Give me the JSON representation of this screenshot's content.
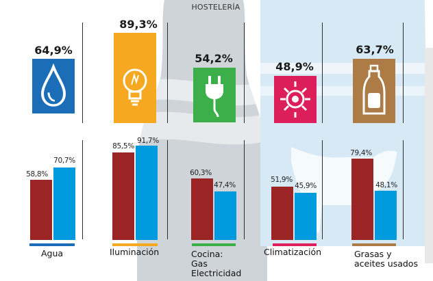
{
  "header": {
    "title": "HOSTELERÍA"
  },
  "colors": {
    "bar_a": "#9b2424",
    "bar_b": "#009bdf",
    "agua": "#1c6db8",
    "iluminacion": "#f6a821",
    "cocina": "#3cae4a",
    "climatizacion": "#dc1e5b",
    "grasas": "#ad7b45"
  },
  "chart_data": {
    "type": "bar",
    "title": "HOSTELERÍA",
    "categories": [
      {
        "key": "agua",
        "label": "Agua",
        "total": "64,9%",
        "a": "58,8%",
        "b": "70,7%",
        "icon": "water-drop-icon"
      },
      {
        "key": "iluminacion",
        "label": "Iluminación",
        "total": "89,3%",
        "a": "85,5%",
        "b": "91,7%",
        "icon": "light-bulb-icon"
      },
      {
        "key": "cocina",
        "label": "Cocina:\nGas\nElectricidad",
        "total": "54,2%",
        "a": "60,3%",
        "b": "47,4%",
        "icon": "power-plug-icon"
      },
      {
        "key": "climatizacion",
        "label": "Climatización",
        "total": "48,9%",
        "a": "51,9%",
        "b": "45,9%",
        "icon": "sun-heat-icon"
      },
      {
        "key": "grasas",
        "label": "Grasas y\naceites usados",
        "total": "63,7%",
        "a": "79,4%",
        "b": "48,1%",
        "icon": "oil-bottle-icon"
      }
    ],
    "values_total": [
      64.9,
      89.3,
      54.2,
      48.9,
      63.7
    ],
    "series": [
      {
        "values": [
          58.8,
          85.5,
          60.3,
          51.9,
          79.4
        ]
      },
      {
        "values": [
          70.7,
          91.7,
          47.4,
          45.9,
          48.1
        ]
      }
    ],
    "ylim": [
      0,
      100
    ],
    "grid": false,
    "legend": "none"
  }
}
